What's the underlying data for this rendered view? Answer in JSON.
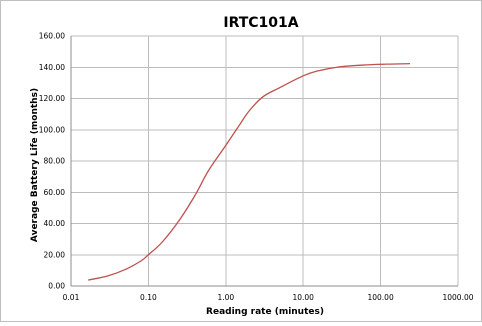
{
  "chart_data": {
    "type": "line",
    "title": "IRTC101A",
    "xlabel": "Reading rate (minutes)",
    "ylabel": "Average Battery Life (months)",
    "x_scale": "log",
    "xlim": [
      0.01,
      1000
    ],
    "ylim": [
      0,
      160
    ],
    "x_ticks": [
      "0.01",
      "0.10",
      "1.00",
      "10.00",
      "100.00",
      "1000.00"
    ],
    "x_tick_values": [
      0.01,
      0.1,
      1,
      10,
      100,
      1000
    ],
    "y_ticks": [
      "0.00",
      "20.00",
      "40.00",
      "60.00",
      "80.00",
      "100.00",
      "120.00",
      "140.00",
      "160.00"
    ],
    "y_tick_values": [
      0,
      20,
      40,
      60,
      80,
      100,
      120,
      140,
      160
    ],
    "grid": true,
    "legend": "none",
    "series": [
      {
        "color": "#c0504d",
        "points": [
          [
            0.0167,
            3.8
          ],
          [
            0.03,
            6.5
          ],
          [
            0.05,
            10.5
          ],
          [
            0.08,
            16
          ],
          [
            0.1,
            20
          ],
          [
            0.15,
            28
          ],
          [
            0.25,
            42
          ],
          [
            0.4,
            58
          ],
          [
            0.6,
            74
          ],
          [
            1,
            90
          ],
          [
            1.5,
            103
          ],
          [
            2,
            112
          ],
          [
            3,
            121
          ],
          [
            5,
            127
          ],
          [
            10,
            134.5
          ],
          [
            15,
            137.5
          ],
          [
            30,
            140.3
          ],
          [
            60,
            141.4
          ],
          [
            120,
            142
          ],
          [
            240,
            142.3
          ]
        ]
      }
    ]
  }
}
